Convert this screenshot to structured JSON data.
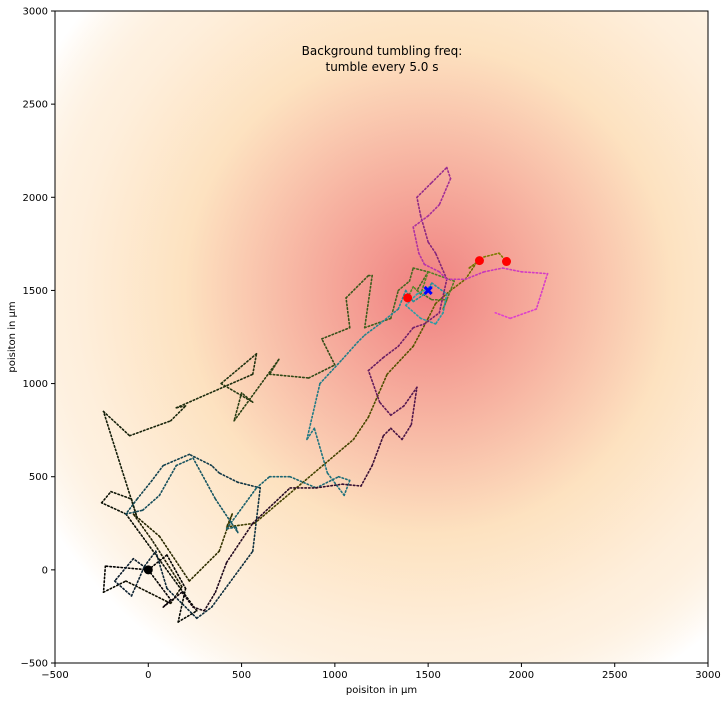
{
  "chart_data": {
    "type": "scatter",
    "title": "",
    "annotation": [
      "Background tumbling freq:",
      "tumble every 5.0 s"
    ],
    "xlabel": "poisiton in µm",
    "ylabel": "poisiton in µm",
    "xlim": [
      -500,
      3000
    ],
    "ylim": [
      -500,
      3000
    ],
    "xticks": [
      -500,
      0,
      500,
      1000,
      1500,
      2000,
      2500,
      3000
    ],
    "yticks": [
      -500,
      0,
      500,
      1000,
      1500,
      2000,
      2500,
      3000
    ],
    "xtick_labels": [
      "−500",
      "0",
      "500",
      "1000",
      "1500",
      "2000",
      "2500",
      "3000"
    ],
    "ytick_labels": [
      "−500",
      "0",
      "500",
      "1000",
      "1500",
      "2000",
      "2500",
      "3000"
    ],
    "grid": false,
    "background_gradient": {
      "center": [
        1500,
        1500
      ],
      "inner_color": "#f08080",
      "mid_color": "#fde2c0",
      "outer_color": "#ffffff"
    },
    "start_point": {
      "x": 0,
      "y": 0,
      "color": "#000000"
    },
    "source_point": {
      "x": 1500,
      "y": 1500,
      "color": "#0000ff",
      "marker": "x"
    },
    "end_points": [
      {
        "x": 1390,
        "y": 1460,
        "color": "#ff0000"
      },
      {
        "x": 1775,
        "y": 1660,
        "color": "#ff0000"
      },
      {
        "x": 1920,
        "y": 1655,
        "color": "#ff0000"
      }
    ],
    "series": [
      {
        "color_start": "#000000",
        "color_end": "#808000",
        "x": [
          0,
          -230,
          -240,
          -120,
          120,
          180,
          20,
          -80,
          60,
          220,
          380,
          450,
          420,
          570,
          1100,
          1180,
          1280,
          1420,
          1500,
          1540,
          1620,
          1700,
          1760,
          1720,
          1800,
          1880,
          1920
        ],
        "y": [
          0,
          20,
          -120,
          -60,
          -180,
          -90,
          160,
          300,
          180,
          -60,
          100,
          300,
          230,
          250,
          700,
          820,
          1050,
          1200,
          1350,
          1430,
          1500,
          1560,
          1650,
          1620,
          1680,
          1700,
          1655
        ]
      },
      {
        "color_start": "#000000",
        "color_end": "#5a8a2a",
        "x": [
          0,
          100,
          200,
          160,
          260,
          -120,
          -250,
          -200,
          -90,
          -60,
          -240,
          -100,
          120,
          200,
          150,
          560,
          580,
          390,
          560,
          500,
          460,
          700,
          650,
          860,
          1000,
          930,
          1080,
          1060,
          1180,
          1200,
          1160,
          1300,
          1340,
          1400,
          1420,
          1500,
          1440,
          1520,
          1600,
          1580,
          1640,
          1500,
          1460,
          1420,
          1390
        ],
        "y": [
          0,
          80,
          -100,
          -280,
          -220,
          300,
          360,
          420,
          380,
          280,
          850,
          720,
          800,
          880,
          870,
          1050,
          1160,
          1000,
          900,
          950,
          800,
          1130,
          1050,
          1030,
          1100,
          1240,
          1300,
          1460,
          1580,
          1580,
          1300,
          1350,
          1500,
          1550,
          1620,
          1600,
          1500,
          1450,
          1450,
          1400,
          1550,
          1600,
          1480,
          1520,
          1460
        ]
      },
      {
        "color_start": "#0a1a2a",
        "color_end": "#2aa8b0",
        "x": [
          0,
          -80,
          -180,
          -90,
          -20,
          40,
          100,
          260,
          340,
          560,
          600,
          480,
          380,
          340,
          220,
          80,
          20,
          -60,
          -120,
          -30,
          60,
          150,
          240,
          360,
          480,
          470,
          420,
          580,
          650,
          760,
          900,
          1020,
          1080,
          1050,
          960,
          890,
          850,
          920,
          1040,
          1120,
          1160,
          1240,
          1340,
          1380,
          1420,
          1480,
          1520,
          1600,
          1580,
          1540,
          1460,
          1380,
          1440,
          1520,
          1490
        ],
        "y": [
          0,
          60,
          -60,
          -140,
          20,
          100,
          -100,
          -260,
          -200,
          100,
          440,
          470,
          520,
          560,
          620,
          560,
          480,
          380,
          300,
          320,
          400,
          560,
          600,
          380,
          200,
          230,
          220,
          440,
          500,
          500,
          440,
          500,
          480,
          400,
          520,
          760,
          700,
          1000,
          1130,
          1220,
          1260,
          1320,
          1400,
          1500,
          1440,
          1480,
          1540,
          1480,
          1380,
          1320,
          1350,
          1420,
          1480,
          1520,
          1500
        ]
      },
      {
        "color_start": "#000000",
        "color_end": "#e040d0",
        "x": [
          0,
          60,
          120,
          80,
          180,
          240,
          300,
          360,
          420,
          560,
          760,
          900,
          1040,
          1140,
          1200,
          1260,
          1300,
          1360,
          1410,
          1440,
          1370,
          1300,
          1240,
          1180,
          1260,
          1340,
          1420,
          1480,
          1560,
          1600,
          1540,
          1500,
          1460,
          1440,
          1520,
          1600,
          1620,
          1560,
          1500,
          1420,
          1450,
          1480,
          1560,
          1600,
          1700,
          1800,
          1900,
          2000,
          2140,
          2080,
          1940,
          1860
        ],
        "y": [
          0,
          -80,
          -160,
          -200,
          -120,
          -200,
          -220,
          -120,
          40,
          250,
          440,
          440,
          460,
          450,
          560,
          720,
          760,
          700,
          780,
          980,
          880,
          830,
          900,
          1070,
          1140,
          1200,
          1300,
          1320,
          1380,
          1560,
          1700,
          1760,
          1900,
          2000,
          2080,
          2160,
          2100,
          1960,
          1900,
          1840,
          1700,
          1640,
          1600,
          1560,
          1560,
          1600,
          1620,
          1600,
          1590,
          1400,
          1350,
          1380
        ]
      }
    ]
  }
}
